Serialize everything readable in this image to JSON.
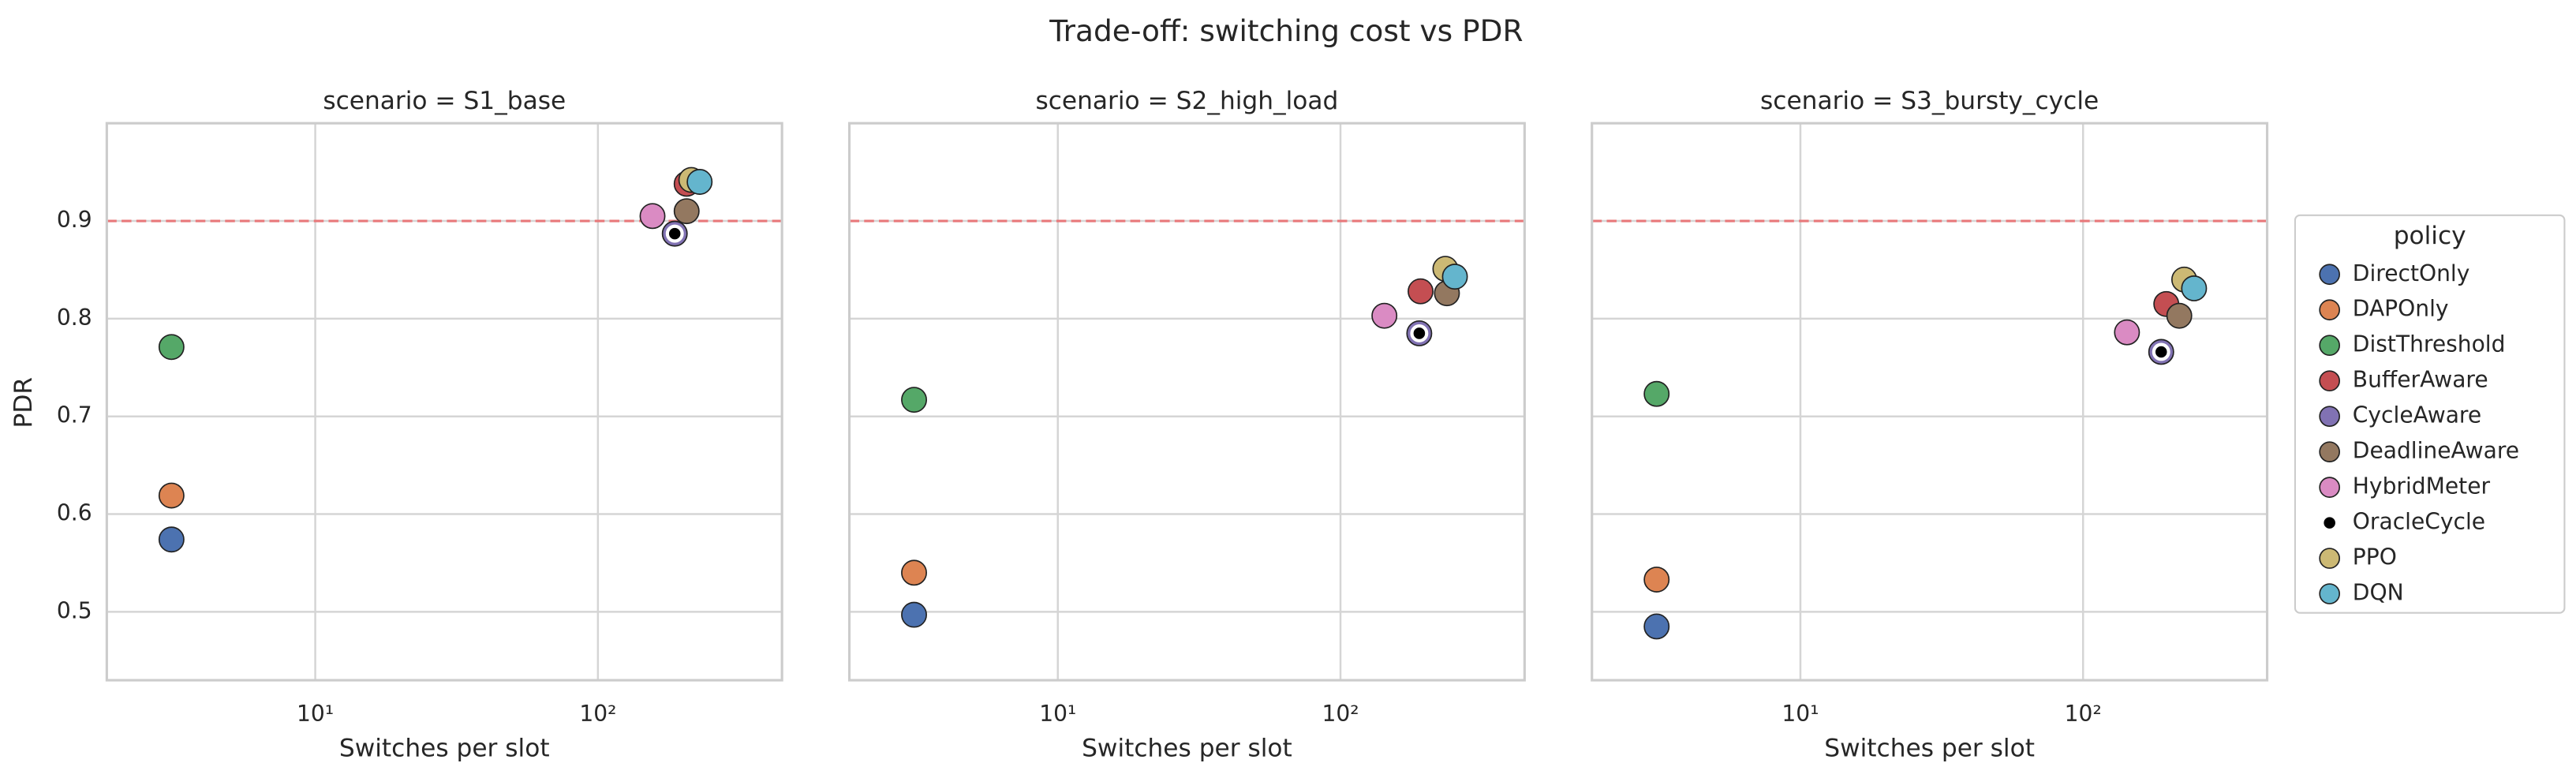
{
  "title": "Trade-off: switching cost vs PDR",
  "legend_title": "policy",
  "chart_data": [
    {
      "type": "scatter",
      "title": "scenario = S1_base",
      "x_label": "Switches per slot",
      "y_label": "PDR",
      "xscale": "log",
      "xlim": [
        1.83,
        448
      ],
      "ylim": [
        0.43,
        1.0
      ],
      "xticks": [
        {
          "value": 10,
          "label": "10¹"
        },
        {
          "value": 100,
          "label": "10²"
        }
      ],
      "yticks": [
        0.5,
        0.6,
        0.7,
        0.8,
        0.9
      ],
      "show_ytick_labels": true,
      "grid": true,
      "hline": {
        "value": 0.9,
        "color": "#e8787a"
      },
      "series": [
        {
          "name": "DirectOnly",
          "color": "#4c72b0",
          "x": [
            3.1
          ],
          "values": [
            0.574
          ]
        },
        {
          "name": "DAPOnly",
          "color": "#dd8452",
          "x": [
            3.1
          ],
          "values": [
            0.619
          ]
        },
        {
          "name": "DistThreshold",
          "color": "#55a868",
          "x": [
            3.1
          ],
          "values": [
            0.771
          ]
        },
        {
          "name": "BufferAware",
          "color": "#c44e52",
          "x": [
            206
          ],
          "values": [
            0.938
          ]
        },
        {
          "name": "CycleAware",
          "color": "#8172b3",
          "x": [
            187
          ],
          "values": [
            0.887
          ]
        },
        {
          "name": "DeadlineAware",
          "color": "#937860",
          "x": [
            206
          ],
          "values": [
            0.91
          ]
        },
        {
          "name": "HybridMeter",
          "color": "#da8bc3",
          "x": [
            156
          ],
          "values": [
            0.905
          ]
        },
        {
          "name": "OracleCycle",
          "color": "#000000",
          "x": [
            187
          ],
          "values": [
            0.887
          ]
        },
        {
          "name": "PPO",
          "color": "#ccb974",
          "x": [
            214
          ],
          "values": [
            0.942
          ]
        },
        {
          "name": "DQN",
          "color": "#64b5cd",
          "x": [
            229
          ],
          "values": [
            0.94
          ]
        }
      ]
    },
    {
      "type": "scatter",
      "title": "scenario = S2_high_load",
      "x_label": "Switches per slot",
      "xscale": "log",
      "xlim": [
        1.83,
        448
      ],
      "ylim": [
        0.43,
        1.0
      ],
      "xticks": [
        {
          "value": 10,
          "label": "10¹"
        },
        {
          "value": 100,
          "label": "10²"
        }
      ],
      "yticks": [
        0.5,
        0.6,
        0.7,
        0.8,
        0.9
      ],
      "show_ytick_labels": false,
      "grid": true,
      "hline": {
        "value": 0.9,
        "color": "#e8787a"
      },
      "series": [
        {
          "name": "DirectOnly",
          "color": "#4c72b0",
          "x": [
            3.1
          ],
          "values": [
            0.497
          ]
        },
        {
          "name": "DAPOnly",
          "color": "#dd8452",
          "x": [
            3.1
          ],
          "values": [
            0.54
          ]
        },
        {
          "name": "DistThreshold",
          "color": "#55a868",
          "x": [
            3.1
          ],
          "values": [
            0.717
          ]
        },
        {
          "name": "BufferAware",
          "color": "#c44e52",
          "x": [
            192
          ],
          "values": [
            0.828
          ]
        },
        {
          "name": "CycleAware",
          "color": "#8172b3",
          "x": [
            190
          ],
          "values": [
            0.785
          ]
        },
        {
          "name": "DeadlineAware",
          "color": "#937860",
          "x": [
            238
          ],
          "values": [
            0.826
          ]
        },
        {
          "name": "HybridMeter",
          "color": "#da8bc3",
          "x": [
            143
          ],
          "values": [
            0.803
          ]
        },
        {
          "name": "OracleCycle",
          "color": "#000000",
          "x": [
            190
          ],
          "values": [
            0.785
          ]
        },
        {
          "name": "PPO",
          "color": "#ccb974",
          "x": [
            235
          ],
          "values": [
            0.851
          ]
        },
        {
          "name": "DQN",
          "color": "#64b5cd",
          "x": [
            254
          ],
          "values": [
            0.843
          ]
        }
      ]
    },
    {
      "type": "scatter",
      "title": "scenario = S3_bursty_cycle",
      "x_label": "Switches per slot",
      "xscale": "log",
      "xlim": [
        1.83,
        448
      ],
      "ylim": [
        0.43,
        1.0
      ],
      "xticks": [
        {
          "value": 10,
          "label": "10¹"
        },
        {
          "value": 100,
          "label": "10²"
        }
      ],
      "yticks": [
        0.5,
        0.6,
        0.7,
        0.8,
        0.9
      ],
      "show_ytick_labels": false,
      "grid": true,
      "hline": {
        "value": 0.9,
        "color": "#e8787a"
      },
      "series": [
        {
          "name": "DirectOnly",
          "color": "#4c72b0",
          "x": [
            3.1
          ],
          "values": [
            0.485
          ]
        },
        {
          "name": "DAPOnly",
          "color": "#dd8452",
          "x": [
            3.1
          ],
          "values": [
            0.533
          ]
        },
        {
          "name": "DistThreshold",
          "color": "#55a868",
          "x": [
            3.1
          ],
          "values": [
            0.723
          ]
        },
        {
          "name": "BufferAware",
          "color": "#c44e52",
          "x": [
            197
          ],
          "values": [
            0.815
          ]
        },
        {
          "name": "CycleAware",
          "color": "#8172b3",
          "x": [
            189
          ],
          "values": [
            0.766
          ]
        },
        {
          "name": "DeadlineAware",
          "color": "#937860",
          "x": [
            219
          ],
          "values": [
            0.803
          ]
        },
        {
          "name": "HybridMeter",
          "color": "#da8bc3",
          "x": [
            143
          ],
          "values": [
            0.786
          ]
        },
        {
          "name": "OracleCycle",
          "color": "#000000",
          "x": [
            189
          ],
          "values": [
            0.766
          ]
        },
        {
          "name": "PPO",
          "color": "#ccb974",
          "x": [
            228
          ],
          "values": [
            0.84
          ]
        },
        {
          "name": "DQN",
          "color": "#64b5cd",
          "x": [
            247
          ],
          "values": [
            0.831
          ]
        }
      ]
    }
  ]
}
